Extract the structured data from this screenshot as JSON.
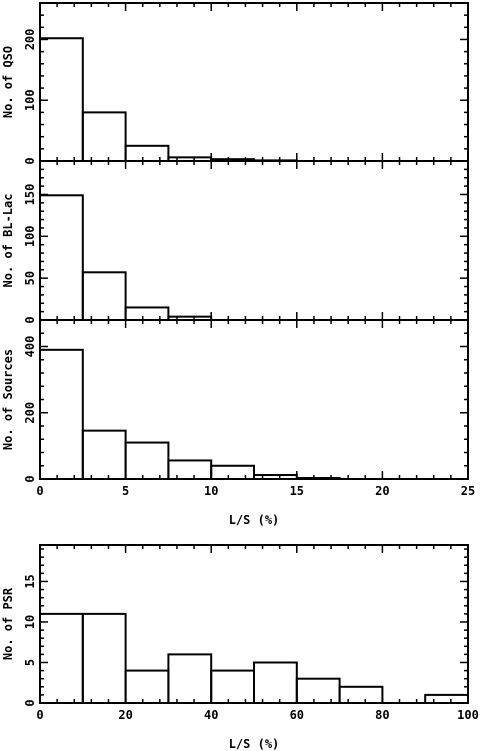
{
  "chart_data": [
    {
      "type": "bar",
      "ylabel": "No. of QSO",
      "xlim": [
        0,
        25
      ],
      "ylim": [
        0,
        260
      ],
      "x_ticks": [
        0,
        5,
        10,
        15,
        20,
        25
      ],
      "y_ticks": [
        0,
        100,
        200
      ],
      "bin_width": 2.5,
      "bins": [
        0,
        2.5,
        5,
        7.5,
        10,
        12.5
      ],
      "values": [
        202,
        80,
        25,
        6,
        3,
        1
      ]
    },
    {
      "type": "bar",
      "ylabel": "No. of BL-Lac",
      "xlim": [
        0,
        25
      ],
      "ylim": [
        0,
        190
      ],
      "x_ticks": [
        0,
        5,
        10,
        15,
        20,
        25
      ],
      "y_ticks": [
        0,
        50,
        100,
        150
      ],
      "bin_width": 2.5,
      "bins": [
        0,
        2.5,
        5,
        7.5
      ],
      "values": [
        149,
        57,
        15,
        4
      ]
    },
    {
      "type": "bar",
      "ylabel": "No. of Sources",
      "xlabel": "L/S (%)",
      "xlim": [
        0,
        25
      ],
      "ylim": [
        0,
        480
      ],
      "x_ticks": [
        0,
        5,
        10,
        15,
        20,
        25
      ],
      "y_ticks": [
        0,
        200,
        400
      ],
      "bin_width": 2.5,
      "bins": [
        0,
        2.5,
        5,
        7.5,
        10,
        12.5,
        15
      ],
      "values": [
        390,
        146,
        110,
        56,
        40,
        12,
        3
      ]
    },
    {
      "type": "bar",
      "ylabel": "No. of PSR",
      "xlabel": "L/S (%)",
      "xlim": [
        0,
        100
      ],
      "ylim": [
        0,
        19.5
      ],
      "x_ticks": [
        0,
        20,
        40,
        60,
        80,
        100
      ],
      "y_ticks": [
        0,
        5,
        10,
        15
      ],
      "bin_width": 10,
      "bins": [
        0,
        10,
        20,
        30,
        40,
        50,
        60,
        70,
        80,
        90
      ],
      "values": [
        11,
        11,
        4,
        6,
        4,
        5,
        3,
        2,
        0,
        1
      ]
    }
  ]
}
